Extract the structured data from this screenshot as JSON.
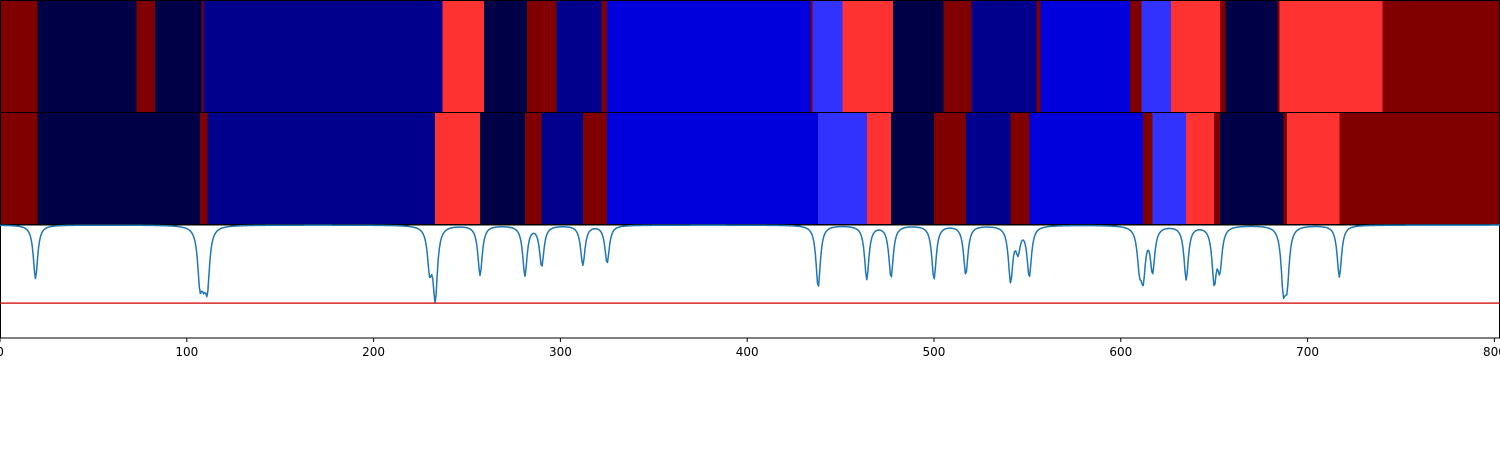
{
  "chart_data": {
    "type": "heatmap",
    "title": "",
    "xlabel": "",
    "ylabel": "",
    "xlim": [
      0,
      803
    ],
    "x_ticks": [
      0,
      100,
      200,
      300,
      400,
      500,
      600,
      700,
      800
    ],
    "x_tick_labels": [
      "0",
      "100",
      "200",
      "300",
      "400",
      "500",
      "600",
      "700",
      "800"
    ],
    "colors": {
      "dark_red": "#800000",
      "navy_darkest": "#000046",
      "navy": "#00008c",
      "blue": "#0000dc",
      "light_blue": "#3232ff",
      "red": "#ff3232",
      "curve": "#1f77b4",
      "threshold_line": "#d62728"
    },
    "segment_rows": [
      {
        "name": "",
        "segments": [
          {
            "start": 0,
            "end": 20,
            "color": "dark_red"
          },
          {
            "start": 20,
            "end": 73,
            "color": "navy_darkest"
          },
          {
            "start": 73,
            "end": 83,
            "color": "dark_red"
          },
          {
            "start": 83,
            "end": 108,
            "color": "navy_darkest"
          },
          {
            "start": 108,
            "end": 109,
            "color": "dark_red"
          },
          {
            "start": 109,
            "end": 237,
            "color": "navy"
          },
          {
            "start": 237,
            "end": 259,
            "color": "red"
          },
          {
            "start": 259,
            "end": 282,
            "color": "navy_darkest"
          },
          {
            "start": 282,
            "end": 298,
            "color": "dark_red"
          },
          {
            "start": 298,
            "end": 322,
            "color": "navy"
          },
          {
            "start": 322,
            "end": 325,
            "color": "dark_red"
          },
          {
            "start": 325,
            "end": 434,
            "color": "blue"
          },
          {
            "start": 434,
            "end": 435,
            "color": "dark_red"
          },
          {
            "start": 435,
            "end": 451,
            "color": "light_blue"
          },
          {
            "start": 451,
            "end": 478,
            "color": "red"
          },
          {
            "start": 478,
            "end": 505,
            "color": "navy_darkest"
          },
          {
            "start": 505,
            "end": 520,
            "color": "dark_red"
          },
          {
            "start": 520,
            "end": 555,
            "color": "navy"
          },
          {
            "start": 555,
            "end": 557,
            "color": "dark_red"
          },
          {
            "start": 557,
            "end": 605,
            "color": "blue"
          },
          {
            "start": 605,
            "end": 611,
            "color": "dark_red"
          },
          {
            "start": 611,
            "end": 627,
            "color": "light_blue"
          },
          {
            "start": 627,
            "end": 653,
            "color": "red"
          },
          {
            "start": 653,
            "end": 656,
            "color": "dark_red"
          },
          {
            "start": 656,
            "end": 684,
            "color": "navy_darkest"
          },
          {
            "start": 684,
            "end": 685,
            "color": "dark_red"
          },
          {
            "start": 685,
            "end": 740,
            "color": "red"
          },
          {
            "start": 740,
            "end": 803,
            "color": "dark_red"
          }
        ]
      },
      {
        "name": "",
        "segments": [
          {
            "start": 0,
            "end": 20,
            "color": "dark_red"
          },
          {
            "start": 20,
            "end": 107,
            "color": "navy_darkest"
          },
          {
            "start": 107,
            "end": 111,
            "color": "dark_red"
          },
          {
            "start": 111,
            "end": 233,
            "color": "navy"
          },
          {
            "start": 233,
            "end": 257,
            "color": "red"
          },
          {
            "start": 257,
            "end": 281,
            "color": "navy_darkest"
          },
          {
            "start": 281,
            "end": 290,
            "color": "dark_red"
          },
          {
            "start": 290,
            "end": 312,
            "color": "navy"
          },
          {
            "start": 312,
            "end": 325,
            "color": "dark_red"
          },
          {
            "start": 325,
            "end": 438,
            "color": "blue"
          },
          {
            "start": 438,
            "end": 464,
            "color": "light_blue"
          },
          {
            "start": 464,
            "end": 477,
            "color": "red"
          },
          {
            "start": 477,
            "end": 500,
            "color": "navy_darkest"
          },
          {
            "start": 500,
            "end": 517,
            "color": "dark_red"
          },
          {
            "start": 517,
            "end": 541,
            "color": "navy"
          },
          {
            "start": 541,
            "end": 551,
            "color": "dark_red"
          },
          {
            "start": 551,
            "end": 612,
            "color": "blue"
          },
          {
            "start": 612,
            "end": 617,
            "color": "dark_red"
          },
          {
            "start": 617,
            "end": 635,
            "color": "light_blue"
          },
          {
            "start": 635,
            "end": 650,
            "color": "red"
          },
          {
            "start": 650,
            "end": 653,
            "color": "dark_red"
          },
          {
            "start": 653,
            "end": 687,
            "color": "navy_darkest"
          },
          {
            "start": 687,
            "end": 689,
            "color": "dark_red"
          },
          {
            "start": 689,
            "end": 717,
            "color": "red"
          },
          {
            "start": 717,
            "end": 803,
            "color": "dark_red"
          }
        ]
      }
    ],
    "line_panel": {
      "type": "line",
      "baseline": 1.0,
      "ylim": [
        -0.2,
        1.0
      ],
      "threshold": 0.17,
      "dips": [
        {
          "x": 19,
          "y": 0.43
        },
        {
          "x": 107,
          "y": 0.47
        },
        {
          "x": 109,
          "y": 0.63
        },
        {
          "x": 111,
          "y": 0.43
        },
        {
          "x": 230,
          "y": 0.58
        },
        {
          "x": 233,
          "y": 0.25
        },
        {
          "x": 257,
          "y": 0.47
        },
        {
          "x": 281,
          "y": 0.47
        },
        {
          "x": 290,
          "y": 0.57
        },
        {
          "x": 312,
          "y": 0.58
        },
        {
          "x": 325,
          "y": 0.6
        },
        {
          "x": 438,
          "y": 0.34
        },
        {
          "x": 464,
          "y": 0.43
        },
        {
          "x": 477,
          "y": 0.45
        },
        {
          "x": 500,
          "y": 0.43
        },
        {
          "x": 517,
          "y": 0.48
        },
        {
          "x": 541,
          "y": 0.42
        },
        {
          "x": 545,
          "y": 0.76
        },
        {
          "x": 551,
          "y": 0.47
        },
        {
          "x": 610,
          "y": 0.62
        },
        {
          "x": 612,
          "y": 0.52
        },
        {
          "x": 617,
          "y": 0.53
        },
        {
          "x": 635,
          "y": 0.43
        },
        {
          "x": 650,
          "y": 0.43
        },
        {
          "x": 653,
          "y": 0.58
        },
        {
          "x": 687,
          "y": 0.41
        },
        {
          "x": 689,
          "y": 0.47
        },
        {
          "x": 717,
          "y": 0.45
        }
      ]
    }
  }
}
